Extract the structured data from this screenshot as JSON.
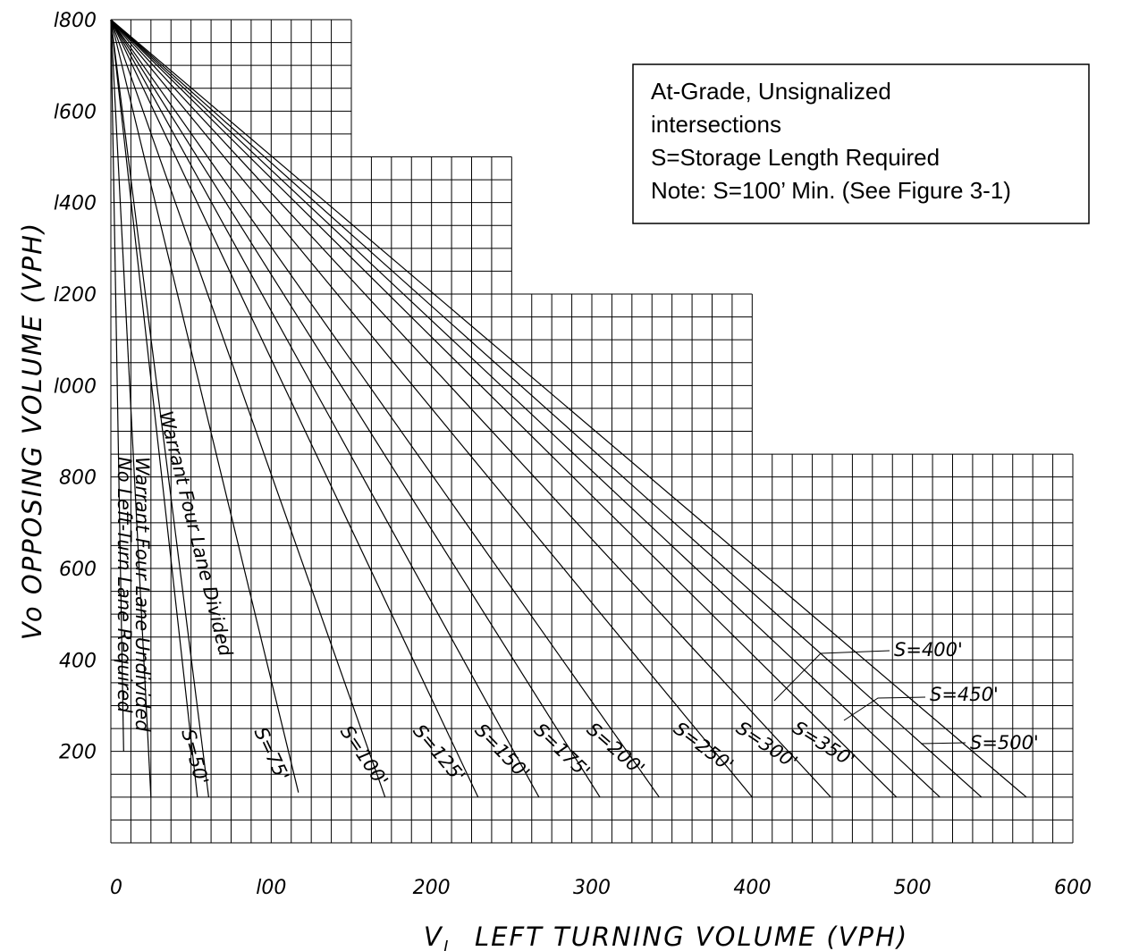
{
  "chart_data": {
    "type": "line",
    "title": "",
    "xlabel": "V",
    "xlabel_subscript": "l",
    "xlabel_rest": "LEFT TURNING VOLUME (VPH)",
    "ylabel": "Vo OPPOSING VOLUME (VPH)",
    "xlim": [
      0,
      600
    ],
    "ylim": [
      0,
      1800
    ],
    "x_ticks": [
      "0",
      "l00",
      "200",
      "300",
      "400",
      "500",
      "600"
    ],
    "y_ticks": [
      "200",
      "400",
      "600",
      "800",
      "l000",
      "l200",
      "l400",
      "l600",
      "l800"
    ],
    "grid": true,
    "grid_step": {
      "x": 12.5,
      "y": 50
    },
    "grid_outline": [
      {
        "x_max": 150,
        "y_max": 1800
      },
      {
        "x_max": 250,
        "y_max": 1500
      },
      {
        "x_max": 400,
        "y_max": 1200
      },
      {
        "x_max": 600,
        "y_max": 850
      }
    ],
    "series": [
      {
        "name": "No Left-Turn Lane Required",
        "x": [
          0,
          8
        ],
        "y": [
          1800,
          200
        ]
      },
      {
        "name": "Warrant Four Lane Undivided",
        "x": [
          0,
          25
        ],
        "y": [
          1800,
          100
        ]
      },
      {
        "name": "Warrant Four Lane Divided",
        "x": [
          0,
          61
        ],
        "y": [
          1800,
          100
        ]
      },
      {
        "name": "S=50'",
        "x": [
          0,
          54
        ],
        "y": [
          1800,
          100
        ]
      },
      {
        "name": "S=75'",
        "x": [
          0,
          117
        ],
        "y": [
          1800,
          110
        ]
      },
      {
        "name": "S=100'",
        "x": [
          0,
          171
        ],
        "y": [
          1800,
          100
        ]
      },
      {
        "name": "S=125'",
        "x": [
          0,
          229
        ],
        "y": [
          1800,
          100
        ]
      },
      {
        "name": "S=150'",
        "x": [
          0,
          267
        ],
        "y": [
          1800,
          100
        ]
      },
      {
        "name": "S=175'",
        "x": [
          0,
          305
        ],
        "y": [
          1800,
          100
        ]
      },
      {
        "name": "S=200'",
        "x": [
          0,
          342
        ],
        "y": [
          1800,
          100
        ]
      },
      {
        "name": "S=250'",
        "x": [
          0,
          400
        ],
        "y": [
          1800,
          100
        ]
      },
      {
        "name": "S=300'",
        "x": [
          0,
          449
        ],
        "y": [
          1800,
          100
        ]
      },
      {
        "name": "S=350'",
        "x": [
          0,
          490
        ],
        "y": [
          1800,
          100
        ]
      },
      {
        "name": "S=400'",
        "x": [
          0,
          517
        ],
        "y": [
          1800,
          100
        ]
      },
      {
        "name": "S=450'",
        "x": [
          0,
          543
        ],
        "y": [
          1800,
          100
        ]
      },
      {
        "name": "S=500'",
        "x": [
          0,
          571
        ],
        "y": [
          1800,
          100
        ]
      }
    ],
    "annotations": [
      "At-Grade, Unsignalized",
      "intersections",
      "S=Storage Length Required",
      "Note: S=100’ Min. (See Figure 3-1)"
    ]
  }
}
